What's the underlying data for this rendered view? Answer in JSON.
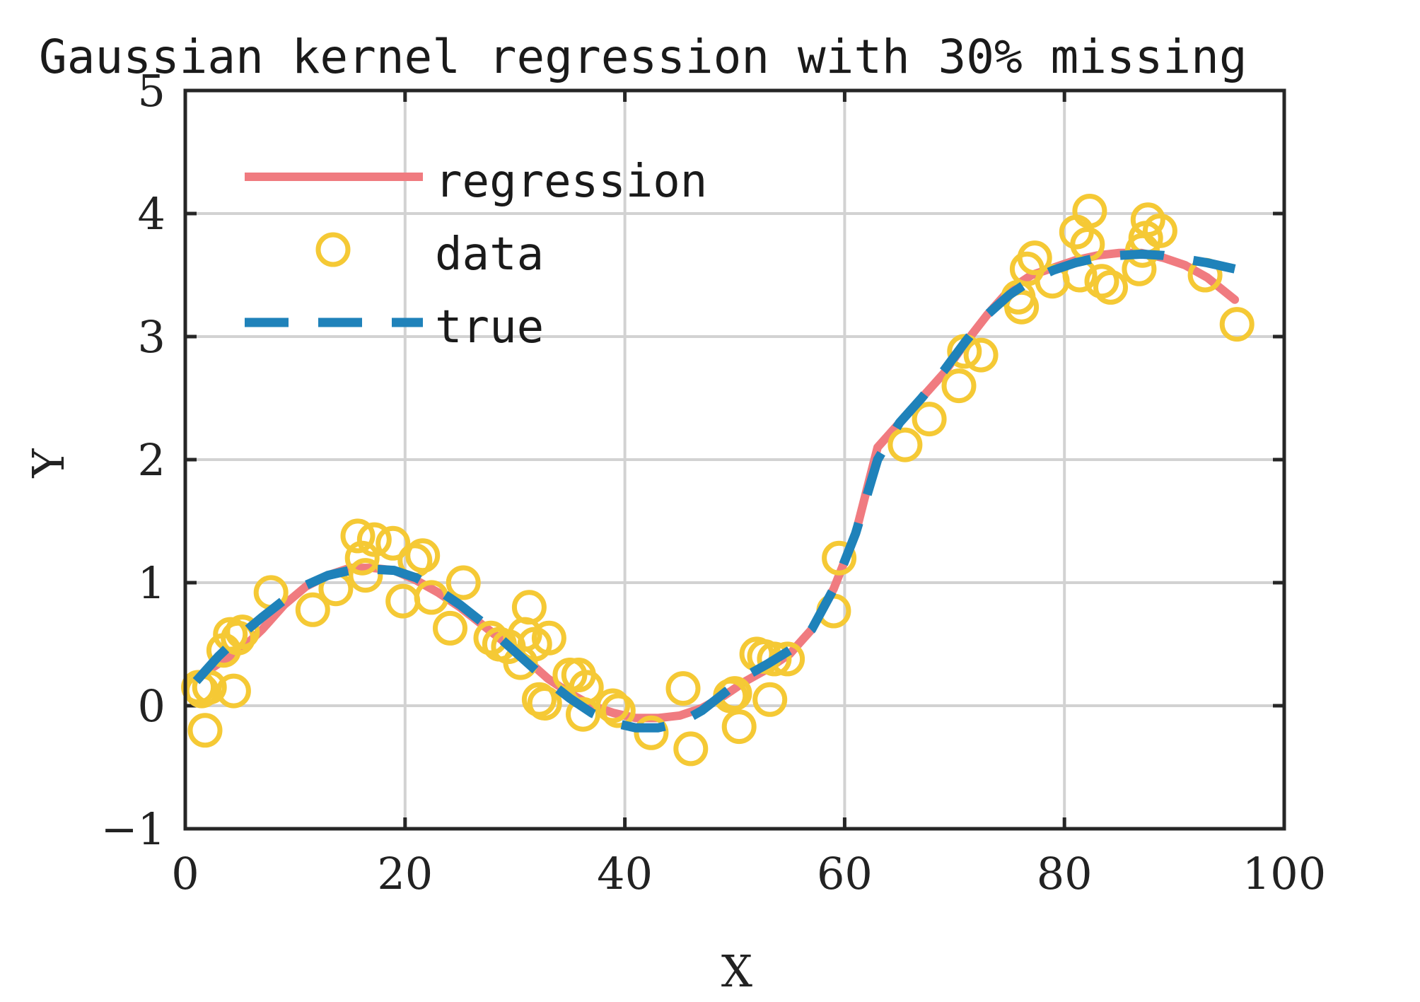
{
  "chart_data": {
    "type": "line",
    "title": "Gaussian kernel regression with 30% missing",
    "xlabel": "X",
    "ylabel": "Y",
    "xlim": [
      0,
      100
    ],
    "ylim": [
      -1,
      5
    ],
    "xticks": [
      "0",
      "20",
      "40",
      "60",
      "80",
      "100"
    ],
    "yticks": [
      "−1",
      "0",
      "1",
      "2",
      "3",
      "4",
      "5"
    ],
    "grid": true,
    "legend_position": "top-left",
    "colors": {
      "regression": "#f07b80",
      "data": "#f5c935",
      "true": "#1f82ba"
    },
    "series": [
      {
        "name": "regression",
        "style": "solid",
        "x": [
          1,
          3,
          5,
          7,
          9,
          11,
          13,
          15,
          17,
          19,
          21,
          23,
          25,
          27,
          29,
          31,
          33,
          35,
          37,
          39,
          41,
          43,
          45,
          47,
          49,
          51,
          53,
          55,
          57,
          59,
          61,
          63,
          65,
          67,
          69,
          71,
          73,
          75,
          77,
          79,
          81,
          83,
          85,
          87,
          89,
          91,
          93,
          95.5
        ],
        "y": [
          0.22,
          0.34,
          0.45,
          0.62,
          0.82,
          0.97,
          1.06,
          1.12,
          1.12,
          1.1,
          1.02,
          0.92,
          0.8,
          0.66,
          0.52,
          0.38,
          0.22,
          0.1,
          0.0,
          -0.06,
          -0.1,
          -0.1,
          -0.08,
          -0.02,
          0.08,
          0.2,
          0.3,
          0.42,
          0.62,
          0.95,
          1.4,
          2.1,
          2.3,
          2.5,
          2.7,
          2.95,
          3.18,
          3.38,
          3.5,
          3.56,
          3.62,
          3.66,
          3.68,
          3.68,
          3.64,
          3.58,
          3.48,
          3.3
        ]
      },
      {
        "name": "data",
        "style": "markers",
        "x": [
          1.2,
          1.5,
          1.8,
          2.2,
          3.5,
          4.1,
          4.4,
          4.8,
          5.2,
          7.8,
          11.6,
          13.7,
          15.7,
          16.1,
          16.4,
          17.2,
          18.9,
          19.8,
          20.9,
          21.6,
          22.4,
          24.1,
          25.3,
          27.8,
          28.6,
          29.4,
          30.5,
          30.9,
          31.3,
          31.8,
          32.2,
          32.7,
          33.1,
          35.0,
          35.8,
          36.2,
          36.5,
          38.9,
          39.4,
          42.4,
          45.3,
          46.0,
          49.6,
          50.0,
          50.4,
          52.0,
          52.7,
          53.2,
          53.6,
          54.8,
          59.0,
          59.5,
          65.5,
          67.7,
          70.4,
          70.9,
          72.4,
          75.8,
          76.1,
          76.6,
          77.3,
          78.9,
          81.1,
          81.4,
          82.1,
          82.3,
          83.4,
          84.2,
          86.8,
          87.1,
          87.4,
          87.6,
          88.7,
          92.8,
          95.7
        ],
        "y": [
          0.15,
          0.12,
          -0.2,
          0.15,
          0.45,
          0.58,
          0.12,
          0.55,
          0.6,
          0.92,
          0.78,
          0.95,
          1.38,
          1.2,
          1.06,
          1.35,
          1.32,
          0.85,
          1.18,
          1.22,
          0.88,
          0.63,
          1.0,
          0.55,
          0.5,
          0.48,
          0.35,
          0.58,
          0.8,
          0.5,
          0.05,
          0.02,
          0.55,
          0.25,
          0.25,
          -0.07,
          0.15,
          0.0,
          -0.04,
          -0.22,
          0.14,
          -0.35,
          0.08,
          0.1,
          -0.17,
          0.42,
          0.4,
          0.05,
          0.38,
          0.38,
          0.77,
          1.2,
          2.12,
          2.33,
          2.6,
          2.88,
          2.85,
          3.32,
          3.24,
          3.55,
          3.64,
          3.45,
          3.85,
          3.5,
          3.75,
          4.02,
          3.45,
          3.4,
          3.55,
          3.7,
          3.8,
          3.95,
          3.86,
          3.5,
          3.1
        ]
      },
      {
        "name": "true",
        "style": "dashed",
        "x": [
          1,
          3,
          5,
          7,
          9,
          11,
          13,
          15,
          17,
          19,
          21,
          23,
          25,
          27,
          29,
          31,
          33,
          35,
          37,
          39,
          41,
          43,
          45,
          47,
          49,
          51,
          53,
          55,
          57,
          59,
          61,
          63,
          65,
          67,
          69,
          71,
          73,
          75,
          77,
          79,
          81,
          83,
          85,
          87,
          89,
          91,
          93,
          95.5
        ],
        "y": [
          0.2,
          0.4,
          0.57,
          0.72,
          0.86,
          0.98,
          1.06,
          1.1,
          1.11,
          1.1,
          1.04,
          0.94,
          0.82,
          0.68,
          0.52,
          0.36,
          0.2,
          0.06,
          -0.06,
          -0.14,
          -0.18,
          -0.18,
          -0.14,
          -0.04,
          0.1,
          0.24,
          0.34,
          0.45,
          0.62,
          0.95,
          1.4,
          2.0,
          2.3,
          2.5,
          2.72,
          2.96,
          3.18,
          3.34,
          3.46,
          3.54,
          3.6,
          3.64,
          3.66,
          3.67,
          3.66,
          3.63,
          3.6,
          3.55
        ]
      }
    ]
  }
}
